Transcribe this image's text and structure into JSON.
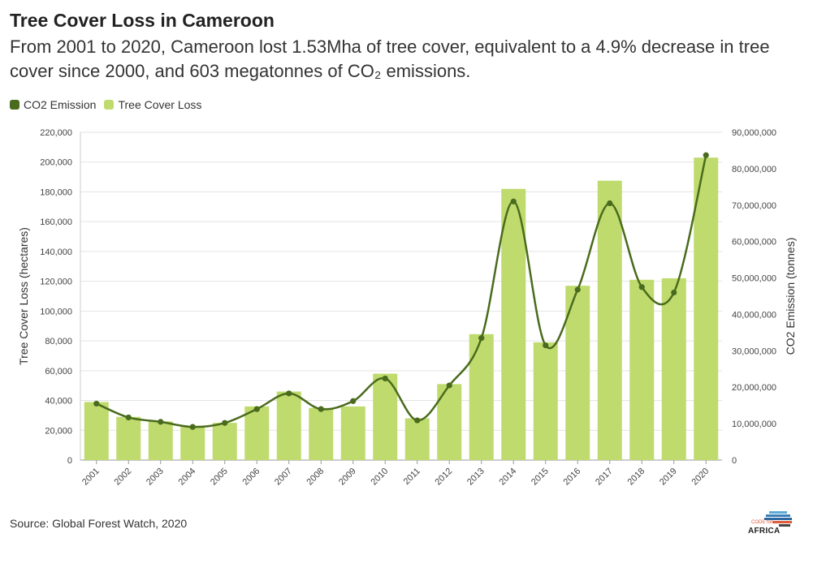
{
  "header": {
    "title": "Tree Cover Loss in Cameroon",
    "subtitle": "From 2001 to 2020, Cameroon lost 1.53Mha of tree cover, equivalent to a 4.9% decrease in tree cover since 2000, and 603 megatonnes of CO₂ emissions."
  },
  "legend": {
    "items": [
      {
        "label": "CO2 Emission",
        "color": "#4a6b1d"
      },
      {
        "label": "Tree Cover Loss",
        "color": "#bfdb6e"
      }
    ]
  },
  "footer": {
    "source": "Source: Global Forest Watch, 2020",
    "logo_text": "AFRICA",
    "logo_small": "CODE for"
  },
  "chart_data": {
    "type": "bar+line",
    "categories": [
      "2001",
      "2002",
      "2003",
      "2004",
      "2005",
      "2006",
      "2007",
      "2008",
      "2009",
      "2010",
      "2011",
      "2012",
      "2013",
      "2014",
      "2015",
      "2016",
      "2017",
      "2018",
      "2019",
      "2020"
    ],
    "series": [
      {
        "name": "Tree Cover Loss",
        "type": "bar",
        "axis": "left",
        "color": "#bfdb6e",
        "values": [
          39000,
          29000,
          26000,
          23000,
          25000,
          36000,
          46000,
          35000,
          36000,
          58000,
          28000,
          51000,
          84500,
          182000,
          79000,
          117000,
          187500,
          121000,
          122000,
          203000
        ]
      },
      {
        "name": "CO2 Emission",
        "type": "line",
        "axis": "right",
        "color": "#4a6b1d",
        "values": [
          15500000,
          11700000,
          10500000,
          9100000,
          10200000,
          14000000,
          18300000,
          14000000,
          16200000,
          22400000,
          10900000,
          20500000,
          33500000,
          71000000,
          31500000,
          46800000,
          70500000,
          47500000,
          46000000,
          83700000
        ]
      }
    ],
    "y_left": {
      "label": "Tree Cover Loss (hectares)",
      "min": 0,
      "max": 220000,
      "ticks": [
        0,
        20000,
        40000,
        60000,
        80000,
        100000,
        120000,
        140000,
        160000,
        180000,
        200000,
        220000
      ],
      "tick_labels": [
        "0",
        "20,000",
        "40,000",
        "60,000",
        "80,000",
        "100,000",
        "120,000",
        "140,000",
        "160,000",
        "180,000",
        "200,000",
        "220,000"
      ]
    },
    "y_right": {
      "label": "CO2 Emission (tonnes)",
      "min": 0,
      "max": 90000000,
      "ticks": [
        0,
        10000000,
        20000000,
        30000000,
        40000000,
        50000000,
        60000000,
        70000000,
        80000000,
        90000000
      ],
      "tick_labels": [
        "0",
        "10,000,000",
        "20,000,000",
        "30,000,000",
        "40,000,000",
        "50,000,000",
        "60,000,000",
        "70,000,000",
        "80,000,000",
        "90,000,000"
      ]
    },
    "grid": true
  }
}
